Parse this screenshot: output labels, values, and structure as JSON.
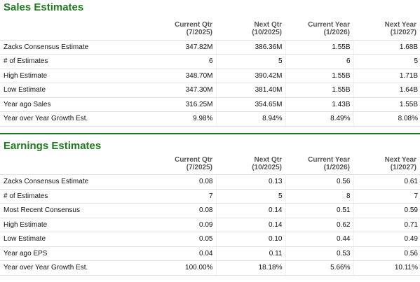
{
  "sales": {
    "title": "Sales Estimates",
    "columns": [
      {
        "line1": "Current Qtr",
        "line2": "(7/2025)"
      },
      {
        "line1": "Next Qtr",
        "line2": "(10/2025)"
      },
      {
        "line1": "Current Year",
        "line2": "(1/2026)"
      },
      {
        "line1": "Next Year",
        "line2": "(1/2027)"
      }
    ],
    "rows": [
      {
        "label": "Zacks Consensus Estimate",
        "values": [
          "347.82M",
          "386.36M",
          "1.55B",
          "1.68B"
        ]
      },
      {
        "label": "# of Estimates",
        "values": [
          "6",
          "5",
          "6",
          "5"
        ]
      },
      {
        "label": "High Estimate",
        "values": [
          "348.70M",
          "390.42M",
          "1.55B",
          "1.71B"
        ]
      },
      {
        "label": "Low Estimate",
        "values": [
          "347.30M",
          "381.40M",
          "1.55B",
          "1.64B"
        ]
      },
      {
        "label": "Year ago Sales",
        "values": [
          "316.25M",
          "354.65M",
          "1.43B",
          "1.55B"
        ]
      },
      {
        "label": "Year over Year Growth Est.",
        "values": [
          "9.98%",
          "8.94%",
          "8.49%",
          "8.08%"
        ]
      }
    ]
  },
  "earnings": {
    "title": "Earnings Estimates",
    "columns": [
      {
        "line1": "Current Qtr",
        "line2": "(7/2025)"
      },
      {
        "line1": "Next Qtr",
        "line2": "(10/2025)"
      },
      {
        "line1": "Current Year",
        "line2": "(1/2026)"
      },
      {
        "line1": "Next Year",
        "line2": "(1/2027)"
      }
    ],
    "rows": [
      {
        "label": "Zacks Consensus Estimate",
        "values": [
          "0.08",
          "0.13",
          "0.56",
          "0.61"
        ]
      },
      {
        "label": "# of Estimates",
        "values": [
          "7",
          "5",
          "8",
          "7"
        ]
      },
      {
        "label": "Most Recent Consensus",
        "values": [
          "0.08",
          "0.14",
          "0.51",
          "0.59"
        ]
      },
      {
        "label": "High Estimate",
        "values": [
          "0.09",
          "0.14",
          "0.62",
          "0.71"
        ]
      },
      {
        "label": "Low Estimate",
        "values": [
          "0.05",
          "0.10",
          "0.44",
          "0.49"
        ]
      },
      {
        "label": "Year ago EPS",
        "values": [
          "0.04",
          "0.11",
          "0.53",
          "0.56"
        ]
      },
      {
        "label": "Year over Year Growth Est.",
        "values": [
          "100.00%",
          "18.18%",
          "5.66%",
          "10.11%"
        ]
      }
    ]
  }
}
